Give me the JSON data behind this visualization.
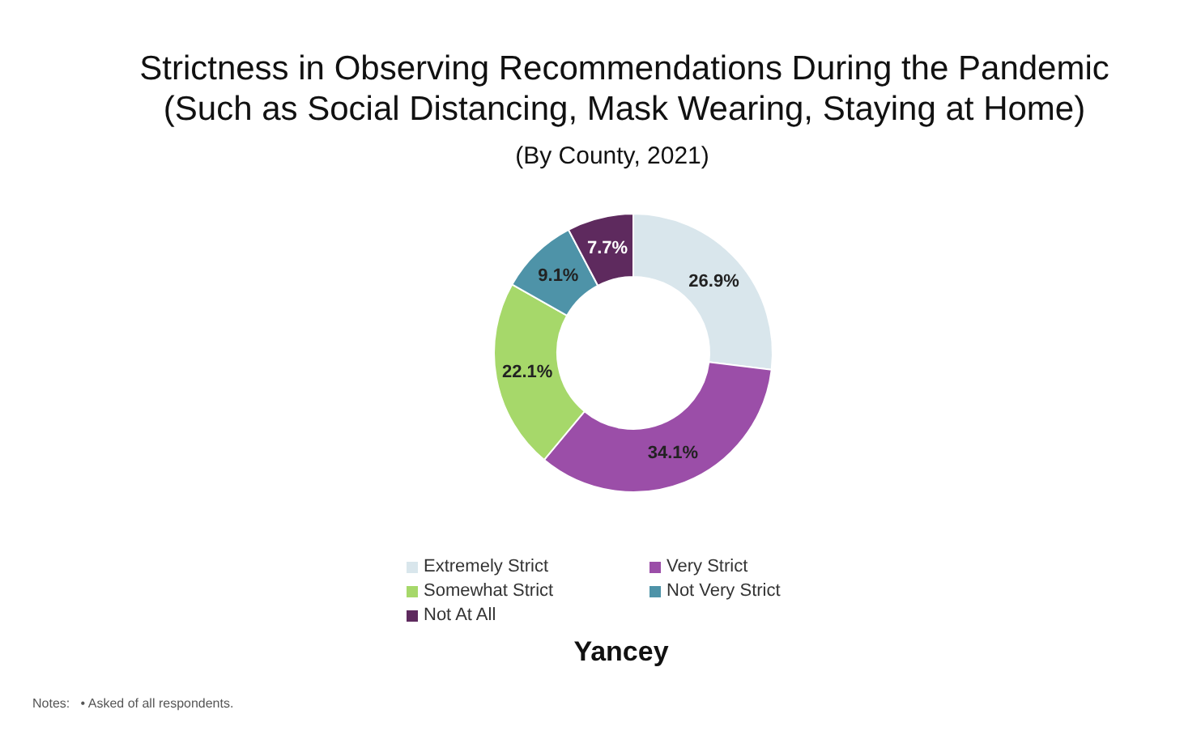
{
  "chart_data": {
    "type": "donut",
    "title": "Strictness in Observing Recommendations During the Pandemic (Such as Social Distancing, Mask Wearing, Staying at Home)",
    "subtitle": "(By County, 2021)",
    "categories": [
      "Extremely Strict",
      "Very Strict",
      "Somewhat Strict",
      "Not Very Strict",
      "Not At All"
    ],
    "values": [
      26.9,
      34.1,
      22.1,
      9.1,
      7.7
    ],
    "value_labels": [
      "26.9%",
      "34.1%",
      "22.1%",
      "9.1%",
      "7.7%"
    ],
    "colors": [
      "#d9e6ec",
      "#9b4ea8",
      "#a6d86a",
      "#4e93a8",
      "#5e2a5e"
    ],
    "legend": "bottom",
    "xlabel": "Yancey",
    "annotations": [
      "Notes:   • Asked of all respondents."
    ]
  }
}
